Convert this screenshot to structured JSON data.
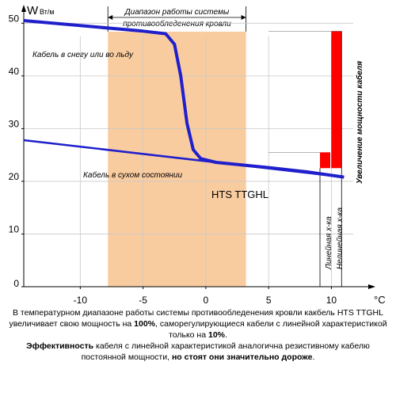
{
  "chart_data": {
    "type": "line",
    "y_axis": {
      "symbol": "W",
      "unit": "Вт/м",
      "ticks": [
        0,
        10,
        20,
        30,
        40,
        50
      ],
      "range": [
        0,
        52
      ]
    },
    "x_axis": {
      "unit": "°C",
      "ticks": [
        -10,
        -5,
        0,
        5,
        10
      ],
      "range": [
        -14.5,
        13
      ]
    },
    "grid": true,
    "band": {
      "label_line1": "Диапазон работы системы",
      "label_line2": "противообледенения кровли",
      "x_range": [
        -7.8,
        3.2
      ],
      "color": "#f9cca0"
    },
    "series": [
      {
        "name": "Кабель в снегу или во льду",
        "color": "#1f1fcc",
        "points": [
          [
            -14.5,
            50.5
          ],
          [
            -5,
            48.5
          ],
          [
            -3.2,
            48
          ],
          [
            -2.5,
            46
          ],
          [
            -2,
            40
          ],
          [
            -1.5,
            31
          ],
          [
            -1,
            26
          ],
          [
            -0.4,
            24.3
          ],
          [
            0.8,
            23.6
          ],
          [
            5,
            22.6
          ],
          [
            8,
            21.8
          ],
          [
            11,
            20.8
          ]
        ]
      },
      {
        "name": "Кабель в сухом состоянии",
        "color": "#1f1fcc",
        "points": [
          [
            -14.5,
            27.8
          ],
          [
            11,
            20.8
          ]
        ]
      }
    ],
    "annotations": {
      "product": "HTS TTGHL",
      "power_increase": "Увеличение мощности кабеля",
      "linear": "Линейная х-ка",
      "nonlinear": "Нелинейная х-ка"
    },
    "bars": [
      {
        "label": "Линейная х-ка",
        "x": 9.5,
        "from": 22.5,
        "to": 25.5,
        "color": "#ff0000"
      },
      {
        "label": "Нелинейная х-ка",
        "x": 10.4,
        "from": 22.5,
        "to": 48.5,
        "color": "#ff0000"
      }
    ]
  },
  "caption": {
    "p1_a": "В температурном диапазоне работы системы противообледенения кровли какбель HTS TTGHL увеличивает свою мощность на ",
    "p1_b": "100%",
    "p1_c": ", саморегулирующиеся кабели с линейной характеристикой только на ",
    "p1_d": "10%",
    "p1_e": ".",
    "p2_a": "Эффективность",
    "p2_b": " кабеля с линейной характеристикой аналогична резистивному кабелю постоянной мощности, ",
    "p2_c": "но стоят они значительно дороже",
    "p2_d": "."
  }
}
